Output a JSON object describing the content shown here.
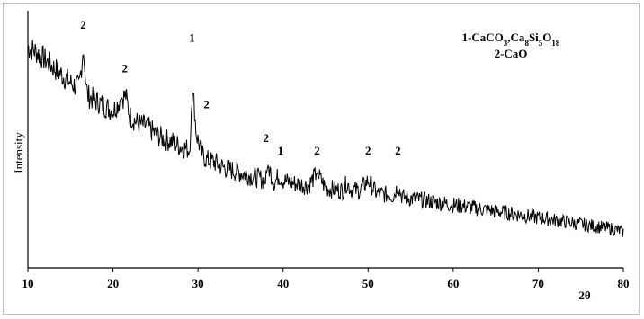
{
  "chart_data": {
    "type": "line",
    "xlabel": "2θ",
    "ylabel": "Intensity",
    "xlim": [
      10,
      80
    ],
    "ylim": [
      0,
      100
    ],
    "x_ticks": [
      10,
      20,
      30,
      40,
      50,
      60,
      70,
      80
    ],
    "grid": false,
    "legend": {
      "placement": "top-right",
      "line1": {
        "prefix": "1-CaCO",
        "sub1": "3",
        "mid1": ",Ca",
        "sub2": "8",
        "mid2": "Si",
        "sub3": "5",
        "mid3": "O",
        "sub4": "18"
      },
      "line2": "2-CaO"
    },
    "series": [
      {
        "x": [
          10,
          11,
          12,
          13,
          14,
          15,
          16,
          16.5,
          17,
          18,
          19,
          20,
          21,
          21.5,
          22,
          23,
          24,
          25,
          26,
          27,
          28,
          29,
          29.4,
          29.8,
          30.5,
          31,
          32,
          33,
          34,
          35,
          36,
          37,
          38,
          38.2,
          39,
          39.5,
          40,
          41,
          42,
          43,
          44,
          45,
          46,
          47,
          47.5,
          48,
          49,
          50,
          51,
          52,
          53,
          53.5,
          54,
          55,
          56,
          57,
          58,
          59,
          60,
          61,
          62,
          63,
          64,
          65,
          66,
          67,
          68,
          69,
          70,
          71,
          72,
          73,
          74,
          75,
          76,
          77,
          78,
          79,
          80
        ],
        "y": [
          86,
          84,
          81,
          78,
          75,
          72,
          70,
          84,
          67,
          65,
          63,
          61,
          66,
          67,
          59,
          56,
          55,
          52,
          50,
          49,
          47,
          46,
          70,
          52,
          44,
          42,
          41,
          39,
          38,
          37,
          36,
          35,
          34,
          40,
          33,
          36,
          34,
          33,
          32.5,
          32,
          37,
          31,
          30.5,
          30,
          33,
          30.5,
          30,
          34,
          29,
          28.5,
          28,
          32,
          27.5,
          27,
          26.5,
          26,
          25.5,
          25,
          24.5,
          24,
          23.5,
          23,
          22.5,
          22,
          21.5,
          21,
          20.5,
          20,
          19.5,
          19,
          18.5,
          18,
          17.5,
          17,
          16.5,
          16,
          15.5,
          15,
          14
        ]
      }
    ],
    "peak_labels": [
      {
        "x": 16.5,
        "y": 93,
        "text": "2"
      },
      {
        "x": 21.4,
        "y": 76,
        "text": "2"
      },
      {
        "x": 29.3,
        "y": 88,
        "text": "1"
      },
      {
        "x": 31.0,
        "y": 62,
        "text": "2"
      },
      {
        "x": 38.0,
        "y": 49,
        "text": "2"
      },
      {
        "x": 39.7,
        "y": 44,
        "text": "1"
      },
      {
        "x": 44.0,
        "y": 44,
        "text": "2"
      },
      {
        "x": 50.0,
        "y": 44,
        "text": "2"
      },
      {
        "x": 53.5,
        "y": 44,
        "text": "2"
      }
    ]
  }
}
